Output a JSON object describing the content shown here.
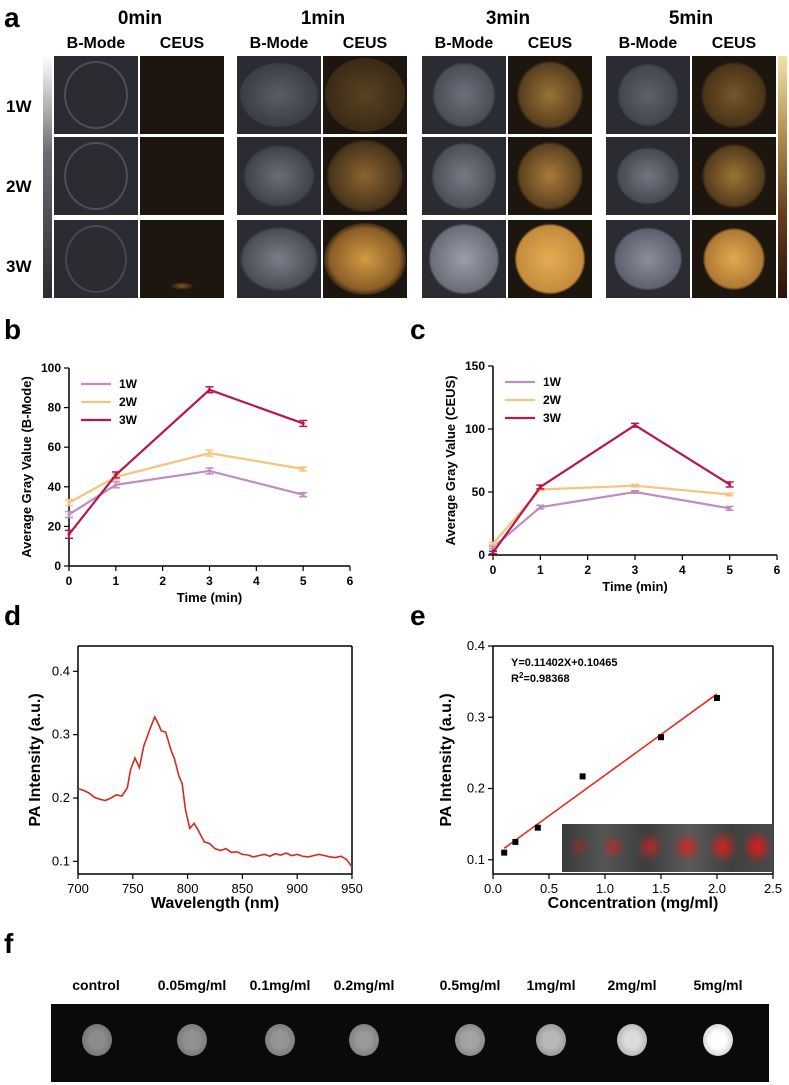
{
  "figure": {
    "panel_a": {
      "letter": "a",
      "time_headers": [
        "0min",
        "1min",
        "3min",
        "5min"
      ],
      "sub_headers": [
        "B-Mode",
        "CEUS"
      ],
      "row_labels": [
        "1W",
        "2W",
        "3W"
      ]
    },
    "panel_b": {
      "letter": "b"
    },
    "panel_c": {
      "letter": "c"
    },
    "panel_d": {
      "letter": "d"
    },
    "panel_e": {
      "letter": "e",
      "equation": "Y=0.11402X+0.10465",
      "r2_prefix": "R",
      "r2_sup": "2",
      "r2_value": "=0.98368"
    },
    "panel_f": {
      "letter": "f",
      "concentrations": [
        "control",
        "0.05mg/ml",
        "0.1mg/ml",
        "0.2mg/ml",
        "0.5mg/ml",
        "1mg/ml",
        "2mg/ml",
        "5mg/ml"
      ],
      "brightness": [
        0.55,
        0.57,
        0.58,
        0.6,
        0.64,
        0.72,
        0.86,
        1.0
      ]
    }
  },
  "chart_data": [
    {
      "id": "b",
      "type": "line",
      "xlabel": "Time (min)",
      "ylabel": "Average Gray Value (B-Mode)",
      "xlim": [
        0,
        6
      ],
      "ylim": [
        0,
        100
      ],
      "xticks": [
        0,
        1,
        2,
        3,
        4,
        5,
        6
      ],
      "yticks": [
        0,
        20,
        40,
        60,
        80,
        100
      ],
      "legend": "top-left",
      "x": [
        0,
        1,
        3,
        5
      ],
      "series": [
        {
          "name": "1W",
          "color": "#c48bc0",
          "values": [
            26,
            41,
            48,
            36
          ],
          "err": [
            1.5,
            1.5,
            1.5,
            1
          ]
        },
        {
          "name": "2W",
          "color": "#f7c37f",
          "values": [
            32,
            45,
            57,
            49
          ],
          "err": [
            1.5,
            1.5,
            1.5,
            1
          ]
        },
        {
          "name": "3W",
          "color": "#b8174e",
          "values": [
            16,
            46,
            89,
            72
          ],
          "err": [
            2,
            1.5,
            1.5,
            1.5
          ]
        }
      ]
    },
    {
      "id": "c",
      "type": "line",
      "xlabel": "Time (min)",
      "ylabel": "Average Gray Value (CEUS)",
      "xlim": [
        0,
        6
      ],
      "ylim": [
        0,
        150
      ],
      "xticks": [
        0,
        1,
        2,
        3,
        4,
        5,
        6
      ],
      "yticks": [
        0,
        50,
        100,
        150
      ],
      "legend": "top-left",
      "x": [
        0,
        1,
        3,
        5
      ],
      "series": [
        {
          "name": "1W",
          "color": "#c48bc0",
          "values": [
            6,
            38,
            50,
            37
          ],
          "err": [
            1,
            1.5,
            1,
            1.5
          ]
        },
        {
          "name": "2W",
          "color": "#f7c37f",
          "values": [
            9,
            52,
            55,
            48
          ],
          "err": [
            1,
            1,
            1,
            1
          ]
        },
        {
          "name": "3W",
          "color": "#b8174e",
          "values": [
            2,
            54,
            103,
            56
          ],
          "err": [
            1,
            1.5,
            1.5,
            2
          ]
        }
      ]
    },
    {
      "id": "d",
      "type": "line",
      "xlabel": "Wavelength (nm)",
      "ylabel": "PA Intensity (a.u.)",
      "xlim": [
        700,
        950
      ],
      "ylim": [
        0.08,
        0.44
      ],
      "xticks": [
        700,
        750,
        800,
        850,
        900,
        950
      ],
      "yticks": [
        0.1,
        0.2,
        0.3,
        0.4
      ],
      "series": [
        {
          "name": "PA spectrum",
          "color": "#d42a1e",
          "x": [
            700,
            705,
            710,
            715,
            720,
            725,
            730,
            735,
            740,
            745,
            748,
            752,
            756,
            760,
            765,
            770,
            773,
            776,
            780,
            785,
            788,
            792,
            795,
            798,
            802,
            806,
            810,
            815,
            820,
            825,
            830,
            835,
            840,
            845,
            850,
            855,
            860,
            865,
            870,
            875,
            880,
            885,
            890,
            895,
            900,
            905,
            910,
            915,
            920,
            925,
            930,
            935,
            940,
            945,
            950
          ],
          "values": [
            0.215,
            0.212,
            0.208,
            0.201,
            0.198,
            0.196,
            0.2,
            0.205,
            0.203,
            0.216,
            0.245,
            0.263,
            0.248,
            0.282,
            0.306,
            0.328,
            0.318,
            0.306,
            0.304,
            0.275,
            0.262,
            0.235,
            0.223,
            0.182,
            0.152,
            0.16,
            0.148,
            0.131,
            0.128,
            0.12,
            0.117,
            0.12,
            0.114,
            0.115,
            0.111,
            0.11,
            0.107,
            0.109,
            0.111,
            0.108,
            0.112,
            0.11,
            0.113,
            0.109,
            0.111,
            0.108,
            0.107,
            0.109,
            0.111,
            0.109,
            0.107,
            0.106,
            0.108,
            0.103,
            0.091
          ]
        }
      ]
    },
    {
      "id": "e",
      "type": "scatter",
      "xlabel": "Concentration (mg/ml)",
      "ylabel": "PA Intensity (a.u.)",
      "xlim": [
        0,
        2.5
      ],
      "ylim": [
        0.08,
        0.4
      ],
      "xticks": [
        0.0,
        0.5,
        1.0,
        1.5,
        2.0,
        2.5
      ],
      "yticks": [
        0.1,
        0.2,
        0.3,
        0.4
      ],
      "x": [
        0.1,
        0.2,
        0.4,
        0.8,
        1.5,
        2.0
      ],
      "values": [
        0.11,
        0.125,
        0.145,
        0.217,
        0.272,
        0.327
      ],
      "fit": {
        "slope": 0.11402,
        "intercept": 0.10465,
        "x0": 0.1,
        "x1": 2.0,
        "color": "#e8291c"
      }
    }
  ]
}
